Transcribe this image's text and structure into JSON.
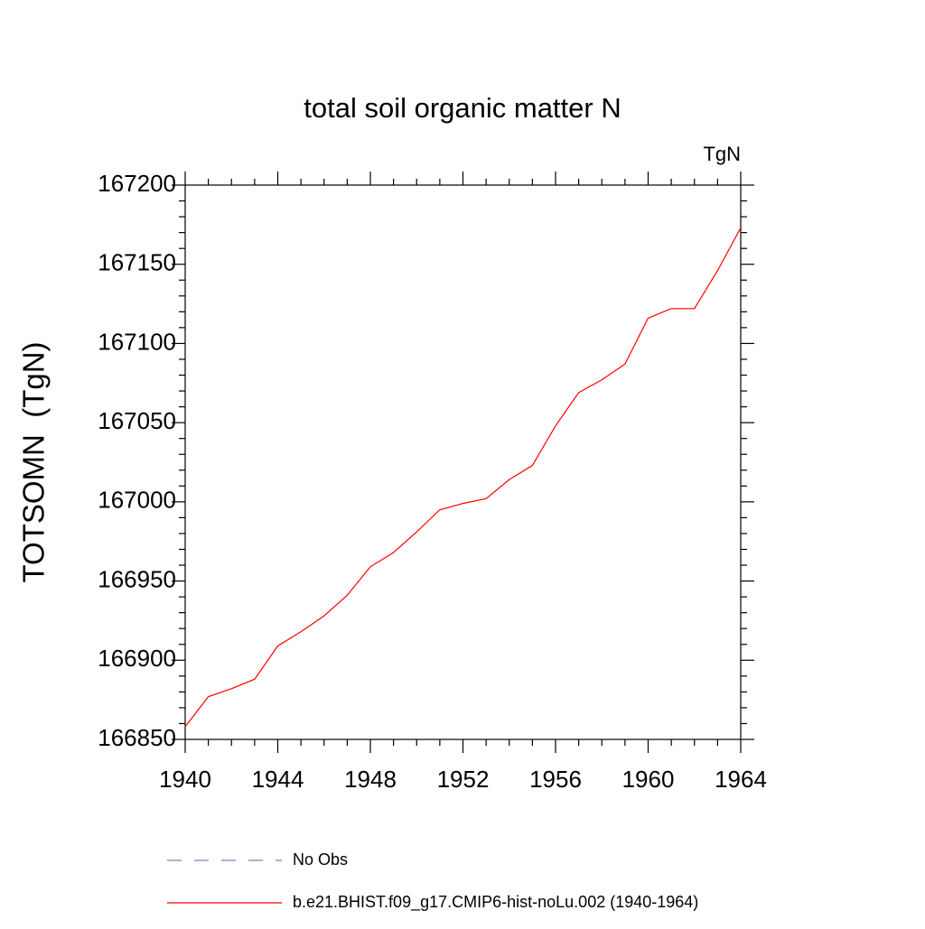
{
  "chart_data": {
    "type": "line",
    "title": "total soil organic matter N",
    "units": "TgN",
    "y_label": "TOTSOMN  (TgN)",
    "x": [
      1940,
      1941,
      1942,
      1943,
      1944,
      1945,
      1946,
      1947,
      1948,
      1949,
      1950,
      1951,
      1952,
      1953,
      1954,
      1955,
      1956,
      1957,
      1958,
      1959,
      1960,
      1961,
      1962,
      1963,
      1964
    ],
    "series": [
      {
        "name": "b.e21.BHIST.f09_g17.CMIP6-hist-noLu.002 (1940-1964)",
        "color": "#ff0000",
        "values": [
          166858,
          166877,
          166882,
          166888,
          166909,
          166918,
          166928,
          166941,
          166959,
          166968,
          166981,
          166995,
          166999,
          167002,
          167014,
          167023,
          167048,
          167069,
          167077,
          167087,
          167116,
          167122,
          167122,
          167146,
          167173
        ]
      }
    ],
    "reference": {
      "name": "No Obs",
      "color": "#8080c0",
      "style": "dashed"
    },
    "xlim": [
      1940,
      1964
    ],
    "xticks": [
      1940,
      1944,
      1948,
      1952,
      1956,
      1960,
      1964
    ],
    "ylim": [
      166850,
      167200
    ],
    "yticks": [
      166850,
      166900,
      166950,
      167000,
      167050,
      167100,
      167150,
      167200
    ],
    "x_minor_per_major": 4,
    "y_minor_per_major": 5
  }
}
